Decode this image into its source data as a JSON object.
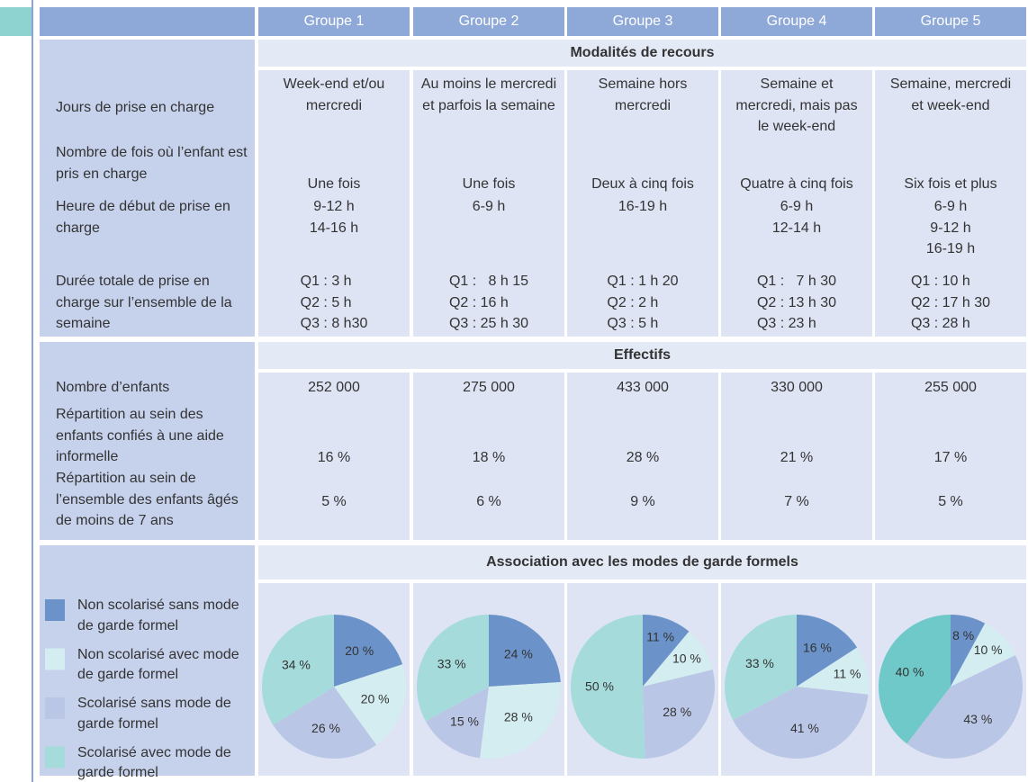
{
  "table": {
    "header": [
      "Groupe 1",
      "Groupe 2",
      "Groupe 3",
      "Groupe 4",
      "Groupe 5"
    ],
    "sections": [
      {
        "title": "Modalités de recours",
        "rows": [
          {
            "label": "Jours de prise en charge",
            "cells": [
              "Week-end et/ou mercredi",
              "Au moins le mercredi et parfois la semaine",
              "Semaine hors mercredi",
              "Semaine et mercredi, mais pas le week-end",
              "Semaine, mercredi et week-end"
            ]
          },
          {
            "label": "Nombre de fois où l’enfant est pris en charge",
            "cells": [
              "Une fois",
              "Une fois",
              "Deux à cinq fois",
              "Quatre à cinq fois",
              "Six fois et plus"
            ]
          },
          {
            "label": "Heure de début de prise en charge",
            "cells": [
              [
                "9-12 h",
                "14-16 h"
              ],
              [
                "6-9 h"
              ],
              [
                "16-19 h"
              ],
              [
                "6-9 h",
                "12-14 h"
              ],
              [
                "6-9 h",
                "9-12 h",
                "16-19 h"
              ]
            ]
          },
          {
            "label": "Durée totale de prise en charge sur l’ensemble de la semaine",
            "cells": [
              [
                "Q1 : 3 h",
                "Q2 : 5 h",
                "Q3 : 8 h30"
              ],
              [
                "Q1 :   8 h 15",
                "Q2 : 16 h",
                "Q3 : 25 h 30"
              ],
              [
                "Q1 : 1 h 20",
                "Q2 : 2 h",
                "Q3 : 5 h"
              ],
              [
                "Q1 :   7 h 30",
                "Q2 : 13 h 30",
                "Q3 : 23 h"
              ],
              [
                "Q1 : 10 h",
                "Q2 : 17 h 30",
                "Q3 : 28 h"
              ]
            ]
          }
        ]
      },
      {
        "title": "Effectifs",
        "rows": [
          {
            "label": "Nombre d’enfants",
            "cells": [
              "252 000",
              "275 000",
              "433 000",
              "330 000",
              "255 000"
            ]
          },
          {
            "label": "Répartition au sein des enfants confiés à une aide informelle",
            "cells": [
              "16 %",
              "18 %",
              "28 %",
              "21 %",
              "17 %"
            ]
          },
          {
            "label": "Répartition au sein de l’ensemble des enfants âgés de moins de 7 ans",
            "cells": [
              "5 %",
              "6 %",
              "9 %",
              "7 %",
              "5 %"
            ]
          }
        ]
      },
      {
        "title": "Association avec les modes de garde formels",
        "rows": []
      }
    ]
  },
  "chart_data": [
    {
      "type": "pie",
      "categories": [
        "Non scolarisé sans mode de garde formel",
        "Non scolarisé avec mode de garde formel",
        "Scolarisé sans mode de garde formel",
        "Scolarisé avec mode de garde formel"
      ],
      "values": [
        20,
        20,
        26,
        34
      ],
      "value_labels": [
        "20 %",
        "20 %",
        "26 %",
        "34 %"
      ],
      "colors": [
        "#6b93c9",
        "#d3edf0",
        "#bac6e6",
        "#a5dcdb"
      ]
    },
    {
      "type": "pie",
      "categories": [
        "Non scolarisé sans mode de garde formel",
        "Non scolarisé avec mode de garde formel",
        "Scolarisé sans mode de garde formel",
        "Scolarisé avec mode de garde formel"
      ],
      "values": [
        24,
        28,
        15,
        33
      ],
      "value_labels": [
        "24 %",
        "28 %",
        "15 %",
        "33 %"
      ],
      "colors": [
        "#6b93c9",
        "#d3edf0",
        "#bac6e6",
        "#a5dcdb"
      ]
    },
    {
      "type": "pie",
      "categories": [
        "Non scolarisé sans mode de garde formel",
        "Non scolarisé avec mode de garde formel",
        "Scolarisé sans mode de garde formel",
        "Scolarisé avec mode de garde formel"
      ],
      "values": [
        11,
        10,
        28,
        50
      ],
      "value_labels": [
        "11 %",
        "10 %",
        "28 %",
        "50 %"
      ],
      "colors": [
        "#6b93c9",
        "#d3edf0",
        "#bac6e6",
        "#a5dcdb"
      ]
    },
    {
      "type": "pie",
      "categories": [
        "Non scolarisé sans mode de garde formel",
        "Non scolarisé avec mode de garde formel",
        "Scolarisé sans mode de garde formel",
        "Scolarisé avec mode de garde formel"
      ],
      "values": [
        16,
        11,
        41,
        33
      ],
      "value_labels": [
        "16 %",
        "11 %",
        "41 %",
        "33 %"
      ],
      "colors": [
        "#6b93c9",
        "#d3edf0",
        "#bac6e6",
        "#a5dcdb"
      ]
    },
    {
      "type": "pie",
      "categories": [
        "Non scolarisé sans mode de garde formel",
        "Non scolarisé avec mode de garde formel",
        "Scolarisé sans mode de garde formel",
        "Scolarisé avec mode de garde formel"
      ],
      "values": [
        8,
        10,
        43,
        40
      ],
      "value_labels": [
        "8 %",
        "10 %",
        "43 %",
        "40 %"
      ],
      "colors": [
        "#6b93c9",
        "#d3edf0",
        "#bac6e6",
        "#6fc9c9"
      ]
    }
  ]
}
